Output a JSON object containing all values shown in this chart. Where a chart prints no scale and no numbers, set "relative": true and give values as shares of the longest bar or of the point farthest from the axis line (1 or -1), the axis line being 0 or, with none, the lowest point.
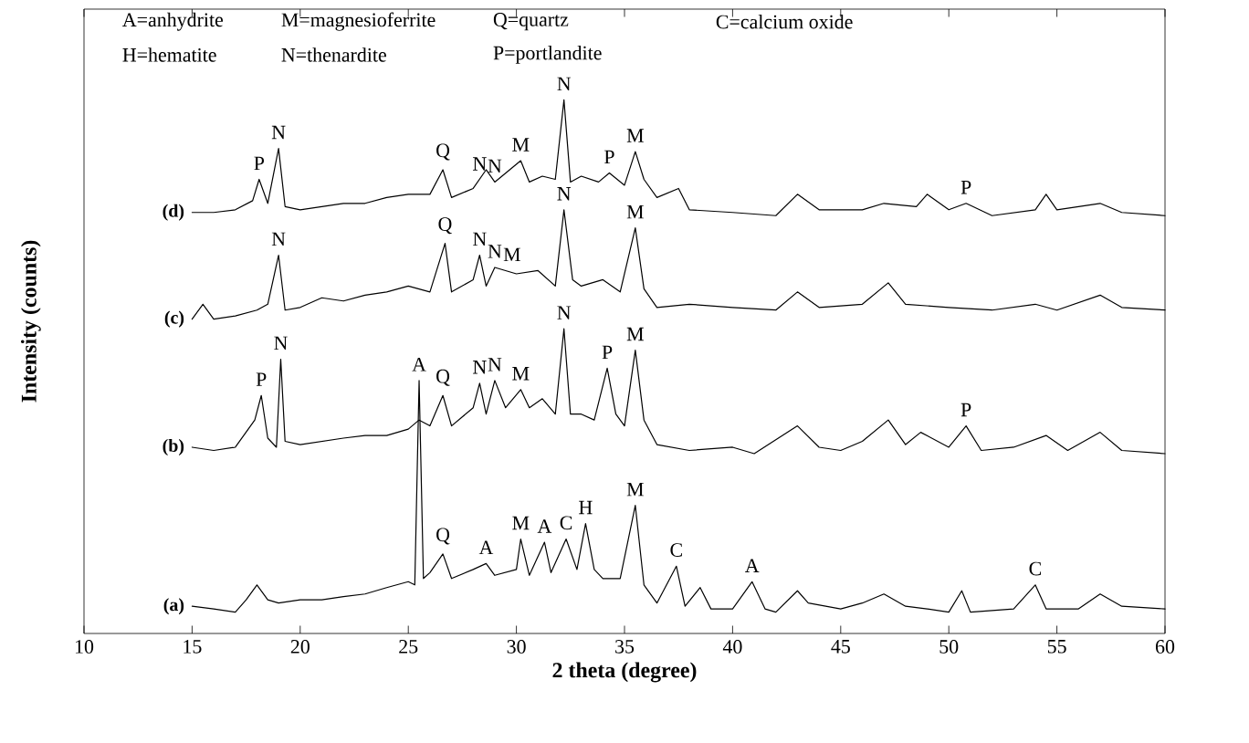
{
  "chart_data": {
    "type": "line",
    "relative": true,
    "xlabel": "2 theta (degree)",
    "ylabel": "Intensity (counts)",
    "xlim": [
      10,
      60
    ],
    "xticks": [
      10,
      15,
      20,
      25,
      30,
      35,
      40,
      45,
      50,
      55,
      60
    ],
    "tick_labels": "x",
    "marker": "none",
    "line_style": "solid",
    "series": [
      {
        "name": "(a)",
        "color": "#000000",
        "x": [
          15,
          16,
          17,
          17.5,
          18,
          18.5,
          19,
          20,
          21,
          22,
          23,
          24,
          25,
          25.3,
          25.5,
          25.7,
          26,
          26.6,
          27,
          28,
          28.6,
          29,
          30,
          30.2,
          30.6,
          31.3,
          31.6,
          32.3,
          32.8,
          33.2,
          33.6,
          34,
          34.8,
          35.5,
          35.9,
          36.5,
          37.4,
          37.8,
          38.5,
          39,
          40,
          40.9,
          41.5,
          42,
          43,
          43.5,
          45,
          46,
          47,
          48,
          49,
          50,
          50.6,
          51,
          53,
          54,
          54.5,
          56,
          57,
          58,
          60
        ],
        "values": [
          0.051,
          0.046,
          0.04,
          0.063,
          0.091,
          0.063,
          0.057,
          0.063,
          0.063,
          0.069,
          0.074,
          0.086,
          0.097,
          0.091,
          0.474,
          0.103,
          0.114,
          0.149,
          0.103,
          0.12,
          0.131,
          0.109,
          0.12,
          0.177,
          0.109,
          0.171,
          0.114,
          0.177,
          0.12,
          0.206,
          0.12,
          0.103,
          0.103,
          0.24,
          0.091,
          0.057,
          0.126,
          0.051,
          0.086,
          0.046,
          0.046,
          0.097,
          0.046,
          0.04,
          0.08,
          0.057,
          0.046,
          0.057,
          0.074,
          0.051,
          0.046,
          0.04,
          0.08,
          0.04,
          0.046,
          0.091,
          0.046,
          0.046,
          0.074,
          0.051,
          0.046
        ]
      },
      {
        "name": "(b)",
        "color": "#000000",
        "x": [
          15,
          16,
          17,
          17.9,
          18.2,
          18.5,
          18.9,
          19.1,
          19.3,
          20,
          21,
          22,
          23,
          24,
          25,
          25.5,
          26,
          26.6,
          27,
          28,
          28.3,
          28.6,
          29,
          29.5,
          30.2,
          30.6,
          31.2,
          31.8,
          32.2,
          32.5,
          33,
          33.6,
          34.2,
          34.6,
          35,
          35.5,
          35.9,
          36.5,
          38,
          40,
          41,
          43,
          44,
          45,
          46,
          47.2,
          48,
          48.7,
          50,
          50.8,
          51.5,
          53,
          54.5,
          55.5,
          57,
          58,
          60
        ],
        "values": [
          0.349,
          0.343,
          0.349,
          0.4,
          0.446,
          0.366,
          0.349,
          0.514,
          0.36,
          0.354,
          0.36,
          0.366,
          0.371,
          0.371,
          0.383,
          0.4,
          0.389,
          0.446,
          0.389,
          0.423,
          0.469,
          0.411,
          0.474,
          0.423,
          0.457,
          0.423,
          0.44,
          0.411,
          0.571,
          0.411,
          0.411,
          0.4,
          0.497,
          0.411,
          0.389,
          0.531,
          0.4,
          0.354,
          0.343,
          0.349,
          0.337,
          0.389,
          0.349,
          0.343,
          0.36,
          0.4,
          0.354,
          0.377,
          0.349,
          0.389,
          0.343,
          0.349,
          0.371,
          0.343,
          0.377,
          0.343,
          0.337
        ]
      },
      {
        "name": "(c)",
        "color": "#000000",
        "x": [
          15,
          15.5,
          16,
          17,
          18,
          18.5,
          19,
          19.3,
          20,
          21,
          22,
          23,
          24,
          25,
          26,
          26.7,
          27,
          28,
          28.3,
          28.6,
          29,
          30,
          31,
          31.8,
          32.2,
          32.6,
          33,
          34,
          34.8,
          35.5,
          35.9,
          36.5,
          38,
          40,
          42,
          43,
          44,
          46,
          47.2,
          48,
          50,
          52,
          54,
          55,
          57,
          58,
          60
        ],
        "values": [
          0.589,
          0.617,
          0.589,
          0.595,
          0.606,
          0.617,
          0.709,
          0.606,
          0.611,
          0.629,
          0.623,
          0.634,
          0.64,
          0.651,
          0.64,
          0.731,
          0.64,
          0.663,
          0.709,
          0.651,
          0.686,
          0.674,
          0.68,
          0.651,
          0.794,
          0.663,
          0.651,
          0.663,
          0.64,
          0.76,
          0.646,
          0.611,
          0.617,
          0.611,
          0.606,
          0.64,
          0.611,
          0.617,
          0.657,
          0.617,
          0.611,
          0.606,
          0.617,
          0.606,
          0.634,
          0.611,
          0.606
        ]
      },
      {
        "name": "(d)",
        "color": "#000000",
        "x": [
          15,
          16,
          17,
          17.8,
          18.1,
          18.5,
          19,
          19.3,
          20,
          21,
          22,
          23,
          24,
          25,
          26,
          26.6,
          27,
          28,
          28.6,
          29,
          30.2,
          30.6,
          31.2,
          31.8,
          32.2,
          32.5,
          33,
          33.8,
          34.3,
          35,
          35.5,
          35.9,
          36.5,
          37.5,
          38,
          40,
          42,
          43,
          44,
          46,
          47,
          48.5,
          49,
          50,
          50.8,
          52,
          54,
          54.5,
          55,
          57,
          58,
          60
        ],
        "values": [
          0.789,
          0.789,
          0.794,
          0.811,
          0.851,
          0.806,
          0.909,
          0.8,
          0.794,
          0.8,
          0.806,
          0.806,
          0.817,
          0.823,
          0.823,
          0.869,
          0.817,
          0.834,
          0.869,
          0.846,
          0.886,
          0.846,
          0.857,
          0.851,
          1.0,
          0.846,
          0.857,
          0.846,
          0.863,
          0.84,
          0.903,
          0.851,
          0.817,
          0.834,
          0.794,
          0.789,
          0.783,
          0.823,
          0.794,
          0.794,
          0.806,
          0.8,
          0.823,
          0.794,
          0.806,
          0.783,
          0.794,
          0.823,
          0.794,
          0.806,
          0.789,
          0.783
        ]
      }
    ],
    "annotations": [
      "A=anhydrite",
      "M=magnesioferrite",
      "Q=quartz",
      "C=calcium oxide",
      "H=hematite",
      "N=thenardite",
      "P=portlandite",
      {
        "text": "A",
        "x": 25.5,
        "y": 0.474
      },
      {
        "text": "Q",
        "x": 26.6,
        "y": 0.149
      },
      {
        "text": "A",
        "x": 28.6,
        "y": 0.131
      },
      {
        "text": "M",
        "x": 30.2,
        "y": 0.177
      },
      {
        "text": "A",
        "x": 31.3,
        "y": 0.171
      },
      {
        "text": "C",
        "x": 32.3,
        "y": 0.177
      },
      {
        "text": "H",
        "x": 33.2,
        "y": 0.206
      },
      {
        "text": "M",
        "x": 35.5,
        "y": 0.24
      },
      {
        "text": "C",
        "x": 37.4,
        "y": 0.126
      },
      {
        "text": "A",
        "x": 40.9,
        "y": 0.097
      },
      {
        "text": "C",
        "x": 54,
        "y": 0.091
      },
      {
        "text": "P",
        "x": 18.2,
        "y": 0.446
      },
      {
        "text": "N",
        "x": 19.1,
        "y": 0.514
      },
      {
        "text": "Q",
        "x": 26.6,
        "y": 0.446
      },
      {
        "text": "N",
        "x": 28.3,
        "y": 0.469
      },
      {
        "text": "N",
        "x": 29,
        "y": 0.474
      },
      {
        "text": "M",
        "x": 30.2,
        "y": 0.457
      },
      {
        "text": "N",
        "x": 32.2,
        "y": 0.571
      },
      {
        "text": "P",
        "x": 34.2,
        "y": 0.497
      },
      {
        "text": "M",
        "x": 35.5,
        "y": 0.531
      },
      {
        "text": "P",
        "x": 50.8,
        "y": 0.389
      },
      {
        "text": "N",
        "x": 19,
        "y": 0.709
      },
      {
        "text": "Q",
        "x": 26.7,
        "y": 0.731
      },
      {
        "text": "N",
        "x": 28.3,
        "y": 0.709
      },
      {
        "text": "N",
        "x": 29,
        "y": 0.686
      },
      {
        "text": "M",
        "x": 29.8,
        "y": 0.68
      },
      {
        "text": "N",
        "x": 32.2,
        "y": 0.794
      },
      {
        "text": "M",
        "x": 35.5,
        "y": 0.76
      },
      {
        "text": "P",
        "x": 18.1,
        "y": 0.851
      },
      {
        "text": "N",
        "x": 19,
        "y": 0.909
      },
      {
        "text": "Q",
        "x": 26.6,
        "y": 0.869
      },
      {
        "text": "N",
        "x": 28.3,
        "y": 0.85
      },
      {
        "text": "N",
        "x": 29,
        "y": 0.846
      },
      {
        "text": "M",
        "x": 30.2,
        "y": 0.886
      },
      {
        "text": "N",
        "x": 32.2,
        "y": 1.0
      },
      {
        "text": "P",
        "x": 34.3,
        "y": 0.863
      },
      {
        "text": "M",
        "x": 35.5,
        "y": 0.903
      },
      {
        "text": "P",
        "x": 50.8,
        "y": 0.806
      }
    ]
  }
}
